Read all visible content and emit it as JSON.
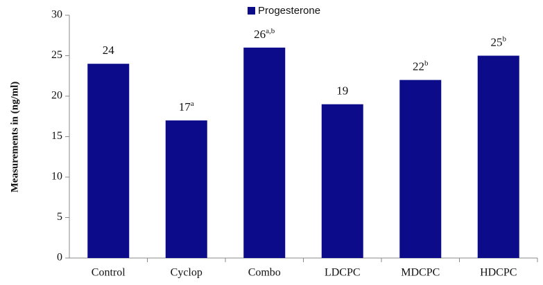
{
  "chart_data": {
    "type": "bar",
    "y_axis_label": "Measurements in (ng/ml)",
    "categories": [
      "Control",
      "Cyclop",
      "Combo",
      "LDCPC",
      "MDCPC",
      "HDCPC"
    ],
    "series": [
      {
        "name": "Progesterone",
        "color": "#0c0c8a",
        "values": [
          24,
          17,
          26,
          19,
          22,
          25
        ]
      }
    ],
    "value_superscripts": [
      null,
      "a",
      "a,b",
      null,
      "b",
      "b"
    ],
    "ylim": [
      0,
      30
    ],
    "yticks": [
      0,
      5,
      10,
      15,
      20,
      25,
      30
    ],
    "legend": "top"
  }
}
